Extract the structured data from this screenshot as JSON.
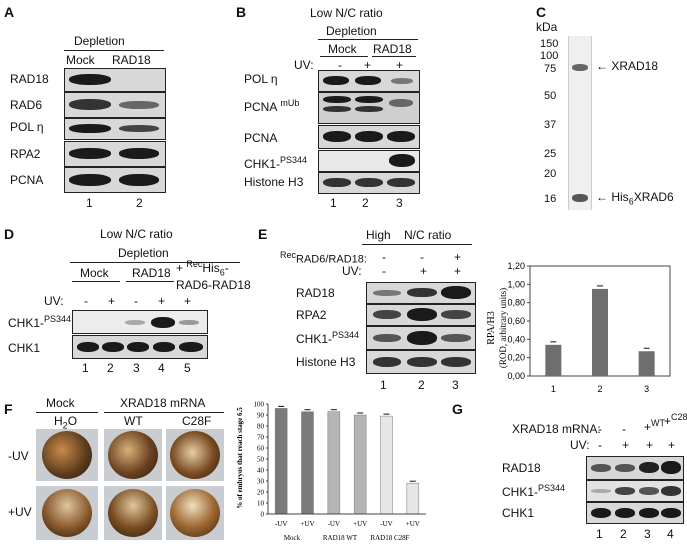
{
  "panels": {
    "A": "A",
    "B": "B",
    "C": "C",
    "D": "D",
    "E": "E",
    "F": "F",
    "G": "G"
  },
  "A": {
    "depletion": "Depletion",
    "cols": [
      "Mock",
      "RAD18"
    ],
    "rows": [
      "RAD18",
      "RAD6",
      "POL η",
      "RPA2",
      "PCNA"
    ],
    "lanes": [
      "1",
      "2"
    ]
  },
  "B": {
    "title": "Low N/C ratio",
    "depletion": "Depletion",
    "groups": [
      "Mock",
      "RAD18"
    ],
    "uv_label": "UV:",
    "uv": [
      "-",
      "+",
      "+"
    ],
    "rows": [
      "POL η",
      "PCNA",
      "mUb",
      "PCNA",
      "CHK1-",
      "PS344",
      "Histone H3"
    ],
    "lanes": [
      "1",
      "2",
      "3"
    ]
  },
  "C": {
    "kda": "kDa",
    "markers": [
      "150",
      "100",
      "75",
      "50",
      "37",
      "25",
      "20",
      "16"
    ],
    "labels": [
      "XRAD18",
      "His",
      "6",
      "XRAD6"
    ]
  },
  "D": {
    "title": "Low N/C ratio",
    "depletion": "Depletion",
    "groups": [
      "Mock",
      "RAD18"
    ],
    "rec1": "+ ",
    "rec2": "Rec",
    "rec3": "His",
    "rec4": "6",
    "rec5": "-",
    "rec6": "RAD6-RAD18",
    "uv_label": "UV:",
    "uv": [
      "-",
      "+",
      "-",
      "+",
      "+"
    ],
    "rows": [
      "CHK1-",
      "PS344",
      "CHK1"
    ],
    "lanes": [
      "1",
      "2",
      "3",
      "4",
      "5"
    ]
  },
  "E": {
    "header": [
      "High",
      "N/C ratio"
    ],
    "rec_label_sup": "Rec",
    "rec_label": "RAD6/RAD18:",
    "rec": [
      "-",
      "-",
      "+"
    ],
    "uv_label": "UV:",
    "uv": [
      "-",
      "+",
      "+"
    ],
    "rows": [
      "RAD18",
      "RPA2",
      "CHK1-",
      "PS344",
      "Histone H3"
    ],
    "lanes": [
      "1",
      "2",
      "3"
    ]
  },
  "E_chart": {
    "ylabel1": "RPA/H3",
    "ylabel2": "(ROD, arbitrary units)",
    "yticks": [
      "0,00",
      "0,20",
      "0,40",
      "0,60",
      "0,80",
      "1,00",
      "1,20"
    ],
    "categories": [
      "1",
      "2",
      "3"
    ]
  },
  "chart_data": {
    "type": "bar",
    "categories": [
      "1",
      "2",
      "3"
    ],
    "values": [
      0.34,
      0.95,
      0.27
    ],
    "xlabel": "",
    "ylabel": "RPA/H3 (ROD, arbitrary units)",
    "ylim": [
      0,
      1.2
    ],
    "bar_color": "#6e6e6e"
  },
  "F": {
    "mock": "Mock",
    "xrad": "XRAD18 mRNA",
    "cols": [
      "H",
      "2",
      "O",
      "WT",
      "C28F"
    ],
    "rows": [
      "-UV",
      "+UV"
    ],
    "ylabel": "% of embryos that reach stage 6.5",
    "yticks": [
      "0",
      "10",
      "20",
      "30",
      "40",
      "50",
      "60",
      "70",
      "80",
      "90",
      "100"
    ],
    "xticks": [
      "-UV",
      "+UV",
      "-UV",
      "+UV",
      "-UV",
      "+UV"
    ],
    "groups": [
      "Mock",
      "RAD18 WT",
      "RAD18 C28F"
    ]
  },
  "F_chart": {
    "type": "bar",
    "categories": [
      "Mock -UV",
      "Mock +UV",
      "RAD18 WT -UV",
      "RAD18 WT +UV",
      "RAD18 C28F -UV",
      "RAD18 C28F +UV"
    ],
    "values": [
      96,
      93,
      93,
      90,
      89,
      28
    ],
    "ylim": [
      0,
      100
    ],
    "colors": [
      "#7a7a7a",
      "#7a7a7a",
      "#b5b5b5",
      "#b5b5b5",
      "#e6e6e6",
      "#e6e6e6"
    ]
  },
  "G": {
    "mrna_label": "XRAD18 mRNA:",
    "mrna": [
      "-",
      "-",
      "+",
      "+"
    ],
    "mrna_sup": [
      "",
      "",
      "WT",
      "C28F"
    ],
    "uv_label": "UV:",
    "uv": [
      "-",
      "+",
      "+",
      "+"
    ],
    "rows": [
      "RAD18",
      "CHK1-",
      "PS344",
      "CHK1"
    ],
    "lanes": [
      "1",
      "2",
      "3",
      "4"
    ]
  }
}
